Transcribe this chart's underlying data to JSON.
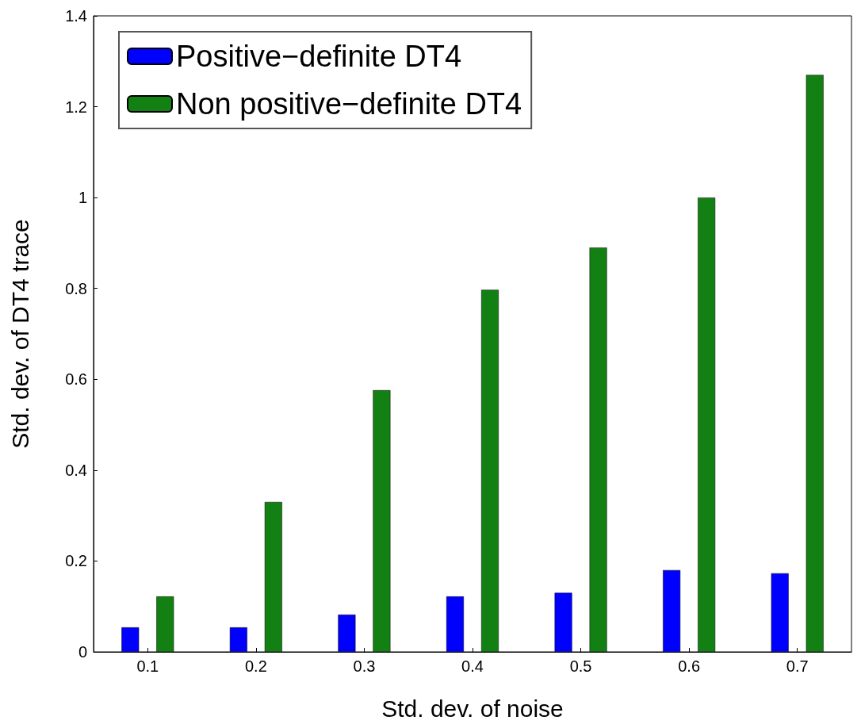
{
  "chart_data": {
    "type": "bar",
    "xlabel": "Std. dev. of noise",
    "ylabel": "Std. dev. of DT4 trace",
    "categories": [
      "0.1",
      "0.2",
      "0.3",
      "0.4",
      "0.5",
      "0.6",
      "0.7"
    ],
    "series": [
      {
        "name": "Positive−definite DT4",
        "color": "#0000ff",
        "values": [
          0.054,
          0.054,
          0.082,
          0.122,
          0.13,
          0.18,
          0.173
        ]
      },
      {
        "name": "Non positive−definite DT4",
        "color": "#138013",
        "values": [
          0.122,
          0.33,
          0.576,
          0.797,
          0.89,
          1.0,
          1.27
        ]
      }
    ],
    "ylim": [
      0,
      1.4
    ],
    "yticks": [
      0,
      0.2,
      0.4,
      0.6,
      0.8,
      1,
      1.2,
      1.4
    ],
    "grid": false,
    "legend": "top left"
  }
}
